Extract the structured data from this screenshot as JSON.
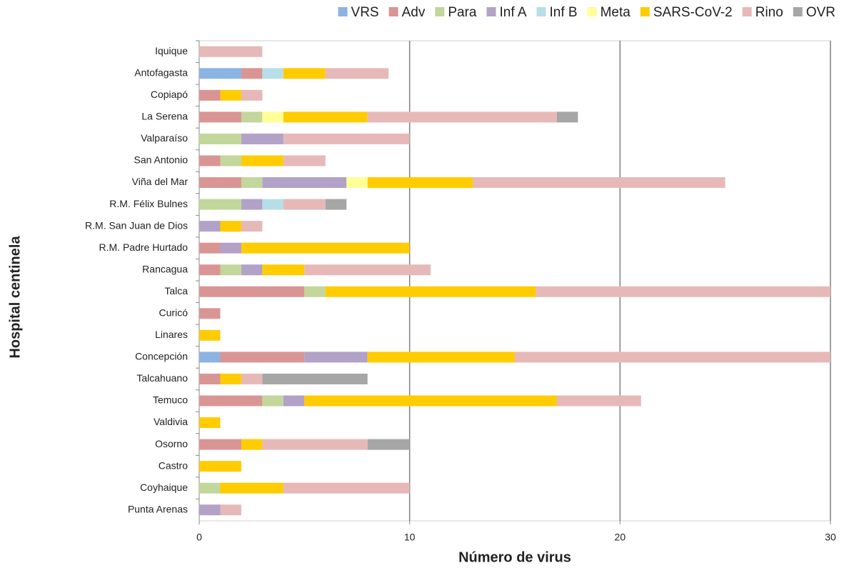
{
  "chart_data": {
    "type": "stacked_barh",
    "x_label": "Número de virus",
    "y_label": "Hospital centinela",
    "categories": [
      "Iquique",
      "Antofagasta",
      "Copiapó",
      "La Serena",
      "Valparaíso",
      "San Antonio",
      "Viña del Mar",
      "R.M. Félix Bulnes",
      "R.M. San Juan de Dios",
      "R.M. Padre Hurtado",
      "Rancagua",
      "Talca",
      "Curicó",
      "Linares",
      "Concepción",
      "Talcahuano",
      "Temuco",
      "Valdivia",
      "Osorno",
      "Castro",
      "Coyhaique",
      "Punta Arenas"
    ],
    "series": [
      {
        "name": "VRS",
        "color": "#8db3e2",
        "values": [
          0,
          2,
          0,
          0,
          0,
          0,
          0,
          0,
          0,
          0,
          0,
          0,
          0,
          0,
          1,
          0,
          0,
          0,
          0,
          0,
          0,
          0
        ]
      },
      {
        "name": "Adv",
        "color": "#d99594",
        "values": [
          0,
          1,
          1,
          2,
          0,
          1,
          2,
          0,
          0,
          1,
          1,
          5,
          1,
          0,
          4,
          1,
          3,
          0,
          2,
          0,
          0,
          0
        ]
      },
      {
        "name": "Para",
        "color": "#c3d69b",
        "values": [
          0,
          0,
          0,
          1,
          2,
          1,
          1,
          2,
          0,
          0,
          1,
          1,
          0,
          0,
          0,
          0,
          1,
          0,
          0,
          0,
          1,
          0
        ]
      },
      {
        "name": "Inf A",
        "color": "#b2a2c7",
        "values": [
          0,
          0,
          0,
          0,
          2,
          0,
          4,
          1,
          1,
          1,
          1,
          0,
          0,
          0,
          3,
          0,
          1,
          0,
          0,
          0,
          0,
          1
        ]
      },
      {
        "name": "Inf B",
        "color": "#b7dee8",
        "values": [
          0,
          1,
          0,
          0,
          0,
          0,
          0,
          1,
          0,
          0,
          0,
          0,
          0,
          0,
          0,
          0,
          0,
          0,
          0,
          0,
          0,
          0
        ]
      },
      {
        "name": "Meta",
        "color": "#ffff99",
        "values": [
          0,
          0,
          0,
          1,
          0,
          0,
          1,
          0,
          0,
          0,
          0,
          0,
          0,
          0,
          0,
          0,
          0,
          0,
          0,
          0,
          0,
          0
        ]
      },
      {
        "name": "SARS-CoV-2",
        "color": "#ffcc00",
        "values": [
          0,
          2,
          1,
          4,
          0,
          2,
          5,
          0,
          1,
          8,
          2,
          10,
          0,
          1,
          7,
          1,
          12,
          1,
          1,
          2,
          3,
          0
        ]
      },
      {
        "name": "Rino",
        "color": "#e6b9b8",
        "values": [
          3,
          3,
          1,
          9,
          6,
          2,
          12,
          2,
          1,
          0,
          6,
          14,
          0,
          0,
          15,
          1,
          4,
          0,
          5,
          0,
          6,
          1
        ]
      },
      {
        "name": "OVR",
        "color": "#a6a6a6",
        "values": [
          0,
          0,
          0,
          1,
          0,
          0,
          0,
          1,
          0,
          0,
          0,
          0,
          0,
          0,
          0,
          5,
          0,
          0,
          2,
          0,
          0,
          0
        ]
      }
    ],
    "xlim": [
      0,
      30
    ],
    "xticks": [
      0,
      10,
      20,
      30
    ],
    "grid": true,
    "legend": "top"
  }
}
